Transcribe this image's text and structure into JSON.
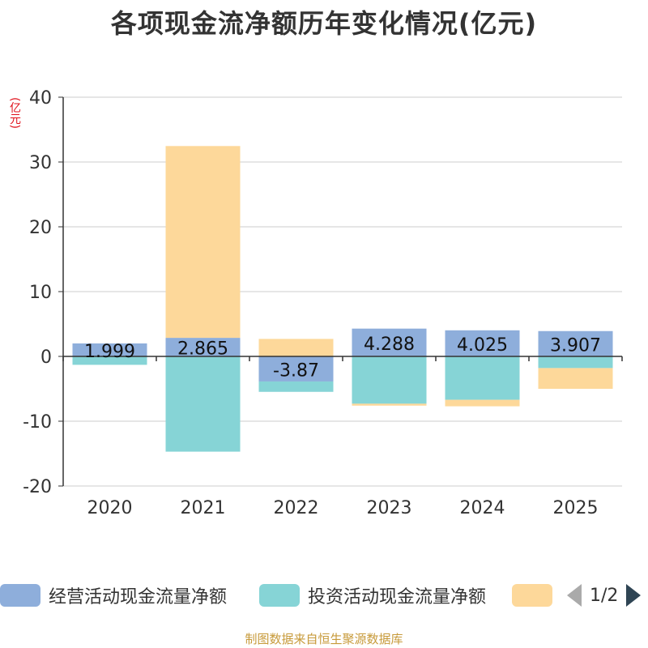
{
  "title": "各项现金流净额历年变化情况(亿元)",
  "unit_label": "(亿元)",
  "source": "制图数据来自恒生聚源数据库",
  "legend": {
    "items": [
      {
        "label": "经营活动现金流量净额",
        "color": "#8eaedb"
      },
      {
        "label": "投资活动现金流量净额",
        "color": "#86d4d6"
      },
      {
        "label": "",
        "color": "#fdd89a"
      }
    ],
    "page_current": "1",
    "page_total": "2",
    "page_text": "1/2"
  },
  "chart_data": {
    "type": "bar",
    "stacked": true,
    "categories": [
      "2020",
      "2021",
      "2022",
      "2023",
      "2024",
      "2025"
    ],
    "ylim": [
      -20,
      40
    ],
    "yticks": [
      40,
      30,
      20,
      10,
      0,
      -10,
      -20
    ],
    "series": [
      {
        "name": "经营活动现金流量净额",
        "color": "#8eaedb",
        "values": [
          1.999,
          2.865,
          -3.87,
          4.288,
          4.025,
          3.907
        ],
        "labels": [
          "1.999",
          "2.865",
          "-3.87",
          "4.288",
          "4.025",
          "3.907"
        ]
      },
      {
        "name": "投资活动现金流量净额",
        "color": "#86d4d6",
        "values": [
          -1.3,
          -14.7,
          -1.6,
          -7.3,
          -6.7,
          -1.8
        ]
      },
      {
        "name": "",
        "color": "#fdd89a",
        "values": [
          0,
          29.6,
          2.7,
          -0.3,
          -1.0,
          -3.2
        ]
      }
    ]
  }
}
